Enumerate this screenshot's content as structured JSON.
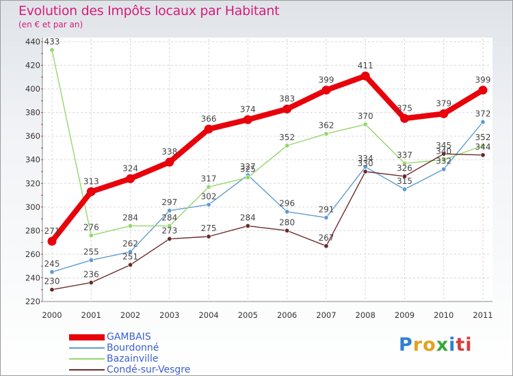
{
  "header": {
    "title": "Evolution des Impôts locaux par Habitant",
    "subtitle": "(en € et par an)"
  },
  "brand": {
    "letters": [
      "P",
      "r",
      "o",
      "x",
      "i",
      "t",
      "i"
    ],
    "colors": [
      "#2f7fd0",
      "#e4a11b",
      "#e4a11b",
      "#3aa53a",
      "#2f7fd0",
      "#d83c3c",
      "#d83c3c"
    ]
  },
  "chart_data": {
    "type": "line",
    "title": "Evolution des Impôts locaux par Habitant",
    "subtitle": "(en € et par an)",
    "xlabel": "",
    "ylabel": "",
    "categories": [
      "2000",
      "2001",
      "2002",
      "2003",
      "2004",
      "2005",
      "2006",
      "2007",
      "2008",
      "2009",
      "2010",
      "2011"
    ],
    "ylim": [
      220,
      440
    ],
    "yticks": [
      220,
      240,
      260,
      280,
      300,
      320,
      340,
      360,
      380,
      400,
      420,
      440
    ],
    "grid": true,
    "legend_position": "bottom-left",
    "series": [
      {
        "name": "GAMBAIS",
        "color": "#e8000b",
        "bold": true,
        "values": [
          271,
          313,
          324,
          338,
          366,
          374,
          383,
          399,
          411,
          375,
          379,
          399
        ],
        "labels": [
          "271",
          "313",
          "324",
          "338",
          "366",
          "374",
          "383",
          "399",
          "411",
          "375",
          "379",
          "399"
        ]
      },
      {
        "name": "Bourdonné",
        "color": "#5e9bd1",
        "bold": false,
        "values": [
          245,
          255,
          262,
          297,
          302,
          327,
          296,
          291,
          334,
          315,
          332,
          372
        ],
        "labels": [
          "245",
          "255",
          "262",
          "297",
          "302",
          "327",
          "296",
          "291",
          "334",
          "315",
          "332",
          "372"
        ]
      },
      {
        "name": "Bazainville",
        "color": "#94d76a",
        "bold": false,
        "values": [
          433,
          276,
          284,
          284,
          317,
          325,
          352,
          362,
          370,
          337,
          340,
          352
        ],
        "labels": [
          "433",
          "276",
          "284",
          "284",
          "317",
          "325",
          "352",
          "362",
          "370",
          "337",
          "340",
          "352"
        ]
      },
      {
        "name": "Condé-sur-Vesgre",
        "color": "#6b2a2a",
        "bold": false,
        "values": [
          230,
          236,
          251,
          273,
          275,
          284,
          280,
          267,
          330,
          326,
          345,
          344
        ],
        "labels": [
          "230",
          "236",
          "251",
          "273",
          "275",
          "284",
          "280",
          "267",
          "330",
          "326",
          "345",
          "344"
        ]
      }
    ]
  }
}
